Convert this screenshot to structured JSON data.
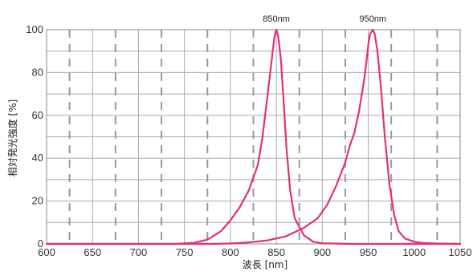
{
  "chart_data": {
    "type": "line",
    "title": "",
    "xlabel": "波長 [nm]",
    "ylabel": "相対発光強度 [%]",
    "xlim": [
      600,
      1050
    ],
    "ylim": [
      0,
      100
    ],
    "x_ticks": [
      600,
      650,
      700,
      750,
      800,
      850,
      900,
      950,
      1000,
      1050
    ],
    "y_ticks": [
      0,
      20,
      40,
      60,
      80,
      100
    ],
    "grid": true,
    "legend": "none",
    "colors": {
      "series": "#e0307a",
      "grid_solid": "#aaaaaa",
      "grid_dashed": "#999999",
      "frame": "#888888"
    },
    "annotations": [
      {
        "text": "850nm",
        "x": 850,
        "y": 100
      },
      {
        "text": "950nm",
        "x": 955,
        "y": 100
      }
    ],
    "series": [
      {
        "points": [
          [
            600,
            0
          ],
          [
            700,
            0
          ],
          [
            740,
            0
          ],
          [
            760,
            0.5
          ],
          [
            775,
            2
          ],
          [
            790,
            6
          ],
          [
            800,
            11
          ],
          [
            810,
            17
          ],
          [
            820,
            25
          ],
          [
            830,
            37
          ],
          [
            835,
            50
          ],
          [
            840,
            68
          ],
          [
            845,
            86
          ],
          [
            848,
            97
          ],
          [
            850,
            100
          ],
          [
            852,
            97
          ],
          [
            855,
            86
          ],
          [
            858,
            66
          ],
          [
            861,
            45
          ],
          [
            865,
            25
          ],
          [
            870,
            12
          ],
          [
            880,
            4
          ],
          [
            890,
            1
          ],
          [
            900,
            0.3
          ],
          [
            930,
            0
          ],
          [
            1050,
            0
          ]
        ]
      },
      {
        "points": [
          [
            600,
            0
          ],
          [
            780,
            0
          ],
          [
            800,
            0.2
          ],
          [
            820,
            0.7
          ],
          [
            840,
            1.6
          ],
          [
            860,
            3.5
          ],
          [
            880,
            7.5
          ],
          [
            895,
            12
          ],
          [
            905,
            18
          ],
          [
            915,
            27
          ],
          [
            925,
            38
          ],
          [
            930,
            46
          ],
          [
            935,
            52
          ],
          [
            940,
            62
          ],
          [
            945,
            75
          ],
          [
            948,
            85
          ],
          [
            950,
            93
          ],
          [
            952,
            98
          ],
          [
            955,
            100
          ],
          [
            957,
            98
          ],
          [
            960,
            90
          ],
          [
            964,
            72
          ],
          [
            968,
            50
          ],
          [
            973,
            28
          ],
          [
            978,
            14
          ],
          [
            983,
            6
          ],
          [
            990,
            2.5
          ],
          [
            1000,
            1
          ],
          [
            1010,
            0.4
          ],
          [
            1030,
            0.1
          ],
          [
            1050,
            0
          ]
        ]
      }
    ]
  }
}
